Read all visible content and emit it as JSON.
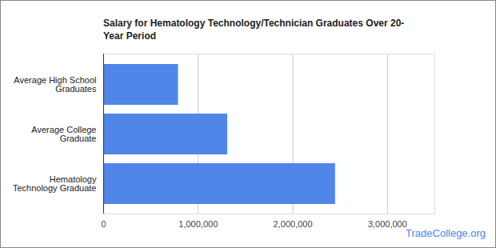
{
  "chart_data": {
    "type": "bar",
    "orientation": "horizontal",
    "title": "Salary for Hematology Technology/Technician Graduates Over 20-Year Period",
    "categories": [
      "Average High School Graduates",
      "Average College Graduate",
      "Hematology Technology Graduate"
    ],
    "values": [
      790000,
      1310000,
      2450000
    ],
    "color": "#4f86e8",
    "xlim": [
      0,
      3500000
    ],
    "xticks": [
      0,
      {
        "value": 1000000,
        "label": "1,000,000"
      },
      {
        "value": 2000000,
        "label": "2,000,000"
      },
      {
        "value": 3000000,
        "label": "3,000,000"
      }
    ],
    "grid": true,
    "caption": "TradeCollege.org"
  }
}
